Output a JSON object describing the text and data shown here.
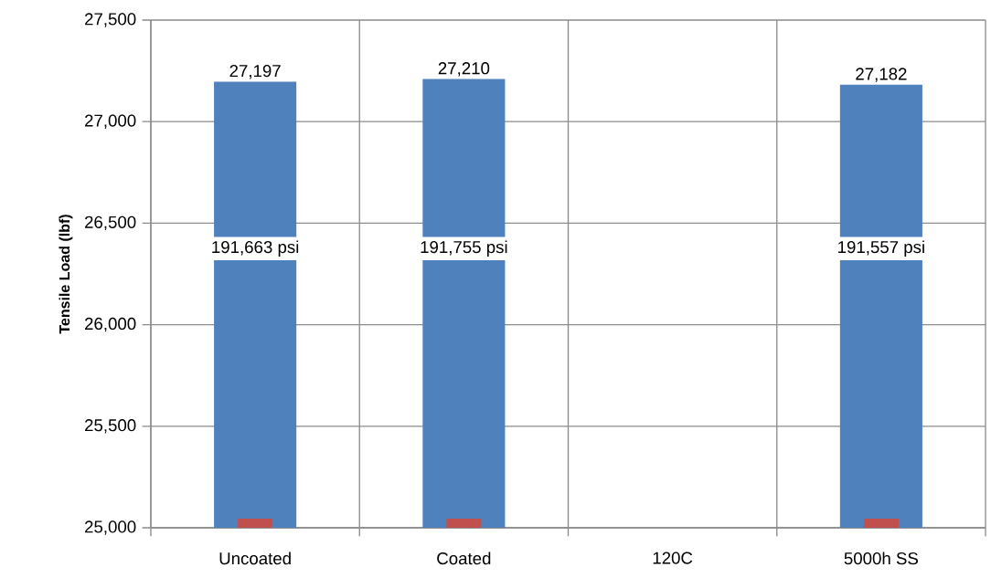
{
  "chart_data": {
    "type": "bar",
    "ylabel": "Tensile Load (lbf)",
    "categories": [
      "Uncoated",
      "Coated",
      "120C",
      "5000h SS"
    ],
    "series": [
      {
        "color": "#4f81bd",
        "values": [
          27197,
          27210,
          null,
          27182
        ],
        "value_labels": [
          "27,197",
          "27,210",
          null,
          "27,182"
        ]
      },
      {
        "color": "#c0504d",
        "values": [
          25045,
          25045,
          null,
          25045
        ]
      }
    ],
    "ylim": [
      25000,
      27500
    ],
    "yticks": [
      {
        "value": 25000,
        "label": "25,000"
      },
      {
        "value": 25500,
        "label": "25,500"
      },
      {
        "value": 26000,
        "label": "26,000"
      },
      {
        "value": 26500,
        "label": "26,500"
      },
      {
        "value": 27000,
        "label": "27,000"
      },
      {
        "value": 27500,
        "label": "27,500"
      }
    ],
    "grid": true,
    "annotations": [
      "191,663 psi",
      "191,755 psi",
      "191,557 psi"
    ]
  }
}
